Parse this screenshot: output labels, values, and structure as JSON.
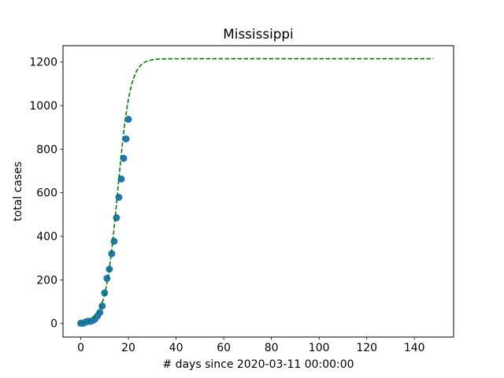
{
  "chart_data": {
    "type": "scatter",
    "title": "Mississippi",
    "xlabel": "# days since 2020-03-11 00:00:00",
    "ylabel": "total cases",
    "xlim": [
      -7.45,
      156.45
    ],
    "ylim": [
      -62.5,
      1275
    ],
    "xticks": [
      0,
      20,
      40,
      60,
      80,
      100,
      120,
      140
    ],
    "yticks": [
      0,
      200,
      400,
      600,
      800,
      1000,
      1200
    ],
    "grid": false,
    "series": [
      {
        "kind": "scatter",
        "color": "#1f77b4",
        "x": [
          0,
          1,
          2,
          3,
          4,
          5,
          6,
          7,
          8,
          9,
          10,
          11,
          12,
          13,
          14,
          15,
          16,
          17,
          18,
          19,
          20
        ],
        "y": [
          1,
          1,
          6,
          10,
          10,
          13,
          21,
          34,
          50,
          80,
          140,
          207,
          249,
          320,
          377,
          485,
          579,
          663,
          758,
          847,
          937
        ]
      },
      {
        "kind": "line",
        "style": "dashed",
        "color": "#008000",
        "logistic": {
          "L": 1215,
          "k": 0.38,
          "x0": 15.5,
          "x_start": 0,
          "x_end": 148
        }
      }
    ]
  }
}
